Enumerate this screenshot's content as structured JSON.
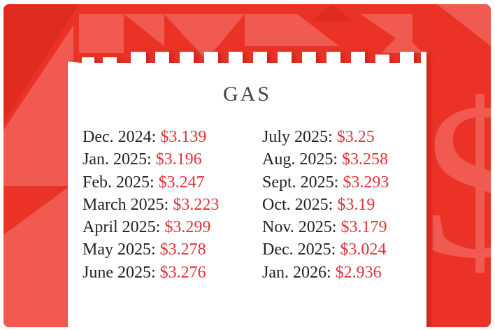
{
  "title": "GAS",
  "colors": {
    "background": "#ea3326",
    "accent_shapes": "#f05a50",
    "paper": "#ffffff",
    "price": "#e0323a"
  },
  "icons": [
    "dollar-sign-icon"
  ],
  "left_column": [
    {
      "month": "Dec. 2024:",
      "price": "$3.139"
    },
    {
      "month": "Jan. 2025:",
      "price": "$3.196"
    },
    {
      "month": "Feb. 2025:",
      "price": "$3.247"
    },
    {
      "month": "March 2025:",
      "price": "$3.223"
    },
    {
      "month": "April 2025:",
      "price": "$3.299"
    },
    {
      "month": "May 2025:",
      "price": "$3.278"
    },
    {
      "month": "June 2025:",
      "price": "$3.276"
    }
  ],
  "right_column": [
    {
      "month": "July 2025:",
      "price": "$3.25"
    },
    {
      "month": "Aug. 2025:",
      "price": "$3.258"
    },
    {
      "month": "Sept. 2025:",
      "price": "$3.293"
    },
    {
      "month": "Oct. 2025:",
      "price": "$3.19"
    },
    {
      "month": "Nov. 2025:",
      "price": "$3.179"
    },
    {
      "month": "Dec. 2025:",
      "price": "$3.024"
    },
    {
      "month": "Jan. 2026:",
      "price": "$2.936"
    }
  ]
}
